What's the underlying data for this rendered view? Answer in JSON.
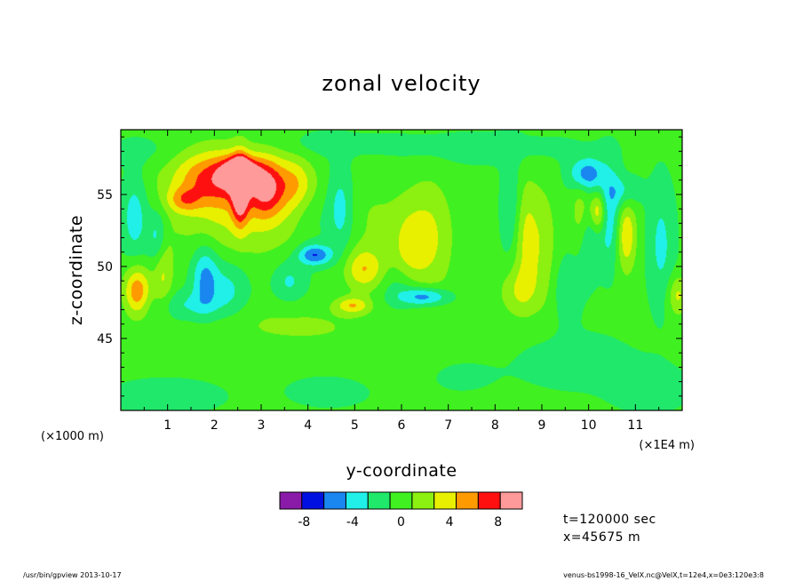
{
  "chart_data": {
    "type": "heatmap",
    "title": "zonal velocity",
    "xlabel": "y-coordinate",
    "ylabel": "z-coordinate",
    "x_unit_left": "(×1000 m)",
    "x_unit_right": "(×1E4 m)",
    "x_ticks": [
      "1",
      "2",
      "3",
      "4",
      "5",
      "6",
      "7",
      "8",
      "9",
      "10",
      "11"
    ],
    "x_tick_values": [
      1,
      2,
      3,
      4,
      5,
      6,
      7,
      8,
      9,
      10,
      11
    ],
    "y_ticks": [
      "45",
      "50",
      "55"
    ],
    "y_tick_values": [
      45,
      50,
      55
    ],
    "xlim": [
      0,
      12
    ],
    "ylim": [
      40,
      59.5
    ],
    "colorbar": {
      "levels": [
        -10,
        -8,
        -6,
        -4,
        -2,
        0,
        2,
        4,
        6,
        8,
        10
      ],
      "colors": [
        "#8a1aa8",
        "#0010e0",
        "#1a86f0",
        "#20f0e8",
        "#20e86a",
        "#40f020",
        "#8cf010",
        "#e8f000",
        "#ff9a00",
        "#ff1010",
        "#ff9a9a"
      ],
      "tick_labels": [
        "-8",
        "-4",
        "0",
        "4",
        "8"
      ],
      "tick_values": [
        -8,
        -4,
        0,
        4,
        8
      ]
    },
    "background_value": 0.5,
    "features": [
      {
        "y": 2.55,
        "z": 56.5,
        "v": 10.5,
        "sy": 0.25,
        "sz": 0.7
      },
      {
        "y": 2.55,
        "z": 55.3,
        "v": 8.5,
        "sy": 0.12,
        "sz": 1.6
      },
      {
        "y": 2.0,
        "z": 56.2,
        "v": 6.0,
        "sy": 0.6,
        "sz": 1.3
      },
      {
        "y": 3.1,
        "z": 55.5,
        "v": 6.0,
        "sy": 0.25,
        "sz": 1.4
      },
      {
        "y": 2.6,
        "z": 54.5,
        "v": 4.5,
        "sy": 1.1,
        "sz": 2.5
      },
      {
        "y": 3.8,
        "z": 55.8,
        "v": 4.5,
        "sy": 0.35,
        "sz": 1.3
      },
      {
        "y": 1.35,
        "z": 54.6,
        "v": 4.0,
        "sy": 0.25,
        "sz": 0.6
      },
      {
        "y": 0.35,
        "z": 48.3,
        "v": 7.0,
        "sy": 0.2,
        "sz": 1.2
      },
      {
        "y": 0.9,
        "z": 49.8,
        "v": 4.0,
        "sy": 0.15,
        "sz": 2.0
      },
      {
        "y": 0.8,
        "z": 52.0,
        "v": -4.5,
        "sy": 0.15,
        "sz": 1.4
      },
      {
        "y": 0.3,
        "z": 53.5,
        "v": -4.0,
        "sy": 0.2,
        "sz": 2.0
      },
      {
        "y": 1.8,
        "z": 49.3,
        "v": -5.0,
        "sy": 0.2,
        "sz": 1.6
      },
      {
        "y": 2.3,
        "z": 48.5,
        "v": -3.0,
        "sy": 0.3,
        "sz": 1.4
      },
      {
        "y": 1.4,
        "z": 47.3,
        "v": -2.5,
        "sy": 0.5,
        "sz": 0.7
      },
      {
        "y": 3.6,
        "z": 49.0,
        "v": -3.0,
        "sy": 0.25,
        "sz": 1.0
      },
      {
        "y": 4.15,
        "z": 50.8,
        "v": -6.5,
        "sy": 0.25,
        "sz": 0.5
      },
      {
        "y": 4.7,
        "z": 54.0,
        "v": -4.0,
        "sy": 0.2,
        "sz": 2.2
      },
      {
        "y": 4.1,
        "z": 54.8,
        "v": -2.5,
        "sy": 0.3,
        "sz": 2.4
      },
      {
        "y": 5.2,
        "z": 49.8,
        "v": 5.0,
        "sy": 0.3,
        "sz": 1.0
      },
      {
        "y": 4.95,
        "z": 47.3,
        "v": 5.0,
        "sy": 0.25,
        "sz": 0.4
      },
      {
        "y": 6.6,
        "z": 52.0,
        "v": 3.8,
        "sy": 0.35,
        "sz": 2.8
      },
      {
        "y": 6.15,
        "z": 51.0,
        "v": 3.0,
        "sy": 0.25,
        "sz": 2.0
      },
      {
        "y": 6.5,
        "z": 47.9,
        "v": -6.0,
        "sy": 0.35,
        "sz": 0.45
      },
      {
        "y": 6.0,
        "z": 48.5,
        "v": -2.5,
        "sy": 0.3,
        "sz": 1.2
      },
      {
        "y": 8.65,
        "z": 52.0,
        "v": 4.0,
        "sy": 0.2,
        "sz": 2.8
      },
      {
        "y": 8.35,
        "z": 54.0,
        "v": -3.0,
        "sy": 0.15,
        "sz": 2.5
      },
      {
        "y": 9.05,
        "z": 51.5,
        "v": 2.5,
        "sy": 0.2,
        "sz": 3.0
      },
      {
        "y": 9.55,
        "z": 48.5,
        "v": -2.5,
        "sy": 0.2,
        "sz": 1.5
      },
      {
        "y": 9.95,
        "z": 56.4,
        "v": -6.0,
        "sy": 0.25,
        "sz": 0.8
      },
      {
        "y": 9.85,
        "z": 53.8,
        "v": 3.0,
        "sy": 0.15,
        "sz": 1.8
      },
      {
        "y": 10.2,
        "z": 53.8,
        "v": 6.0,
        "sy": 0.12,
        "sz": 1.0
      },
      {
        "y": 10.0,
        "z": 52.0,
        "v": -3.0,
        "sy": 0.15,
        "sz": 2.0
      },
      {
        "y": 10.45,
        "z": 53.5,
        "v": -4.0,
        "sy": 0.18,
        "sz": 2.5
      },
      {
        "y": 10.8,
        "z": 52.2,
        "v": 5.5,
        "sy": 0.15,
        "sz": 1.8
      },
      {
        "y": 10.75,
        "z": 55.2,
        "v": -3.0,
        "sy": 0.25,
        "sz": 0.8
      },
      {
        "y": 11.55,
        "z": 51.5,
        "v": -3.0,
        "sy": 0.2,
        "sz": 3.0
      },
      {
        "y": 11.9,
        "z": 48.0,
        "v": 4.0,
        "sy": 0.15,
        "sz": 1.0
      },
      {
        "y": 8.5,
        "z": 48.3,
        "v": 3.0,
        "sy": 0.3,
        "sz": 1.2
      },
      {
        "y": 5.5,
        "z": 53.0,
        "v": 1.5,
        "sy": 0.5,
        "sz": 2.5
      },
      {
        "y": 3.5,
        "z": 46.0,
        "v": 1.5,
        "sy": 1.2,
        "sz": 1.0
      },
      {
        "y": 6.0,
        "z": 44.0,
        "v": 1.0,
        "sy": 2.0,
        "sz": 2.0
      },
      {
        "y": 1.0,
        "z": 41.0,
        "v": -2.0,
        "sy": 0.8,
        "sz": 0.8
      },
      {
        "y": 4.5,
        "z": 41.5,
        "v": -1.5,
        "sy": 0.8,
        "sz": 1.0
      },
      {
        "y": 7.2,
        "z": 42.5,
        "v": -1.5,
        "sy": 0.6,
        "sz": 1.0
      },
      {
        "y": 9.5,
        "z": 43.5,
        "v": -1.6,
        "sy": 1.0,
        "sz": 1.5
      },
      {
        "y": 11.3,
        "z": 41.5,
        "v": -1.5,
        "sy": 0.6,
        "sz": 1.2
      },
      {
        "y": 7.8,
        "z": 58.2,
        "v": -1.5,
        "sy": 1.5,
        "sz": 0.8
      },
      {
        "y": 4.5,
        "z": 58.5,
        "v": -1.2,
        "sy": 1.2,
        "sz": 0.6
      },
      {
        "y": 0.5,
        "z": 58.0,
        "v": -1.2,
        "sy": 0.6,
        "sz": 0.8
      }
    ]
  },
  "info": {
    "time": "t=120000 sec",
    "position": "x=45675 m"
  },
  "footer": {
    "left": "/usr/bin/gpview  2013-10-17",
    "right": "venus-bs1998-16_VelX.nc@VelX,t=12e4,x=0e3:120e3:8"
  }
}
